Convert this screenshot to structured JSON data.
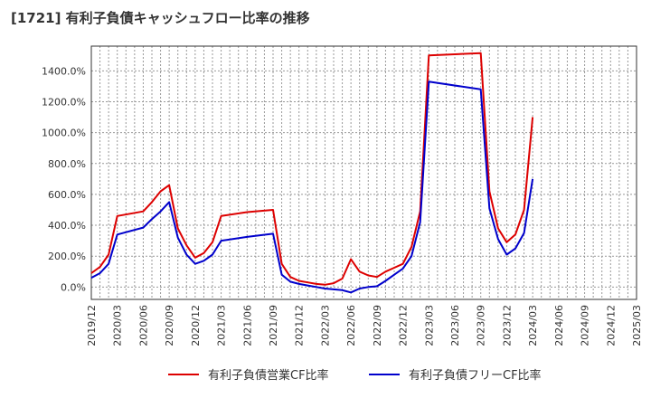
{
  "title": "[1721]  有利子負債キャッシュフロー比率の推移",
  "chart_data": {
    "type": "line",
    "title": "[1721]  有利子負債キャッシュフロー比率の推移",
    "xlabel": "",
    "ylabel": "",
    "x_ticks": [
      "2019/12",
      "2020/03",
      "2020/06",
      "2020/09",
      "2020/12",
      "2021/03",
      "2021/06",
      "2021/09",
      "2021/12",
      "2022/03",
      "2022/06",
      "2022/09",
      "2022/12",
      "2023/03",
      "2023/06",
      "2023/09",
      "2023/12",
      "2024/03",
      "2024/06",
      "2024/09",
      "2024/12",
      "2025/03"
    ],
    "y_ticks": [
      "0.0%",
      "200.0%",
      "400.0%",
      "600.0%",
      "800.0%",
      "1000.0%",
      "1200.0%",
      "1400.0%"
    ],
    "y_tick_values": [
      0,
      200,
      400,
      600,
      800,
      1000,
      1200,
      1400
    ],
    "ylim": [
      -80,
      1560
    ],
    "xlim": [
      "2019/12",
      "2025/03"
    ],
    "grid": true,
    "legend_position": "bottom",
    "series": [
      {
        "name": "有利子負債営業CF比率",
        "color": "#dd0000",
        "x": [
          "2019/12",
          "2020/01",
          "2020/02",
          "2020/03",
          "2020/06",
          "2020/07",
          "2020/08",
          "2020/09",
          "2020/10",
          "2020/11",
          "2020/12",
          "2021/01",
          "2021/02",
          "2021/03",
          "2021/06",
          "2021/09",
          "2021/10",
          "2021/11",
          "2021/12",
          "2022/01",
          "2022/02",
          "2022/03",
          "2022/04",
          "2022/05",
          "2022/06",
          "2022/07",
          "2022/08",
          "2022/09",
          "2022/10",
          "2022/11",
          "2022/12",
          "2023/01",
          "2023/02",
          "2023/03",
          "2023/09",
          "2023/10",
          "2023/11",
          "2023/12",
          "2024/01",
          "2024/02",
          "2024/03"
        ],
        "values": [
          90,
          130,
          210,
          460,
          490,
          550,
          620,
          660,
          380,
          270,
          190,
          220,
          290,
          460,
          485,
          500,
          150,
          65,
          40,
          30,
          20,
          15,
          25,
          55,
          180,
          100,
          75,
          65,
          100,
          125,
          150,
          260,
          490,
          1500,
          1515,
          620,
          380,
          290,
          340,
          500,
          1100
        ]
      },
      {
        "name": "有利子負債フリーCF比率",
        "color": "#0000cc",
        "x": [
          "2019/12",
          "2020/01",
          "2020/02",
          "2020/03",
          "2020/06",
          "2020/07",
          "2020/08",
          "2020/09",
          "2020/10",
          "2020/11",
          "2020/12",
          "2021/01",
          "2021/02",
          "2021/03",
          "2021/06",
          "2021/09",
          "2021/10",
          "2021/11",
          "2021/12",
          "2022/01",
          "2022/02",
          "2022/03",
          "2022/04",
          "2022/05",
          "2022/06",
          "2022/07",
          "2022/08",
          "2022/09",
          "2022/10",
          "2022/11",
          "2022/12",
          "2023/01",
          "2023/02",
          "2023/03",
          "2023/09",
          "2023/10",
          "2023/11",
          "2023/12",
          "2024/01",
          "2024/02",
          "2024/03"
        ],
        "values": [
          60,
          90,
          150,
          340,
          385,
          440,
          490,
          550,
          320,
          210,
          150,
          170,
          210,
          300,
          325,
          345,
          80,
          35,
          20,
          10,
          0,
          -10,
          -15,
          -20,
          -35,
          -10,
          0,
          5,
          40,
          80,
          120,
          200,
          420,
          1330,
          1280,
          510,
          310,
          210,
          250,
          350,
          700
        ]
      }
    ]
  }
}
